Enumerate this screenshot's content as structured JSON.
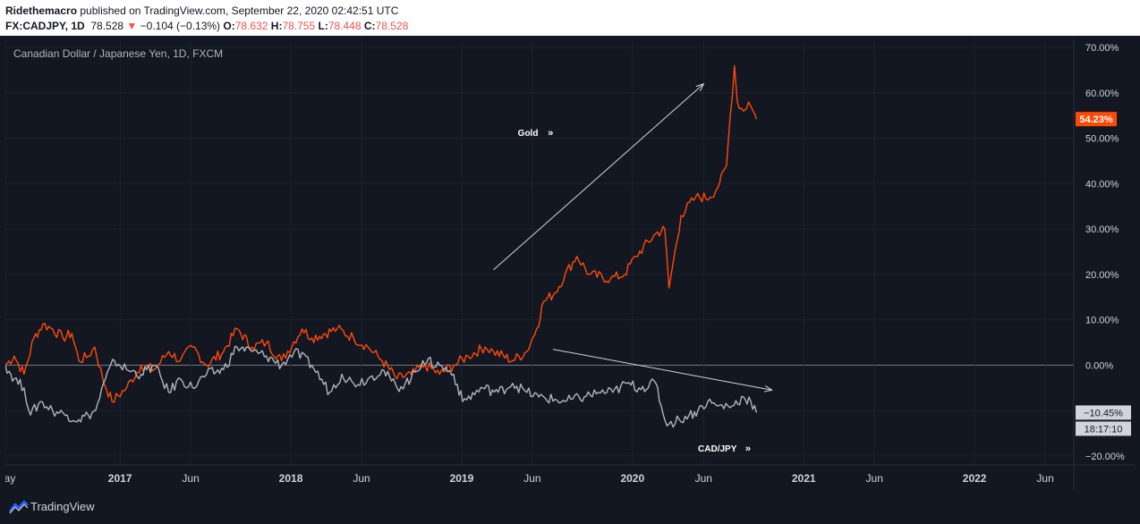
{
  "header": {
    "author": "Ridethemacro",
    "published_text": "published on TradingView.com, September 22, 2020 02:42:51 UTC",
    "symbol": "FX:CADJPY, 1D",
    "price": "78.528",
    "change": "−0.104 (−0.13%)",
    "o_label": "O:",
    "o_value": "78.632",
    "h_label": "H:",
    "h_value": "78.755",
    "l_label": "L:",
    "l_value": "78.448",
    "c_label": "C:",
    "c_value": "78.528",
    "down_arrow": "▼"
  },
  "footer": {
    "brand": "TradingView"
  },
  "colors": {
    "gold": "#ff4a07",
    "cadjpy": "#b2b5be",
    "background": "#131722",
    "grid": "#1e222d",
    "zero_line": "#787b86"
  },
  "chart_data": {
    "type": "line",
    "title": "Canadian Dollar / Japanese Yen, 1D, FXCM",
    "y_unit": "%",
    "ylim": [
      -22,
      72
    ],
    "xlim": [
      "2016-05-01",
      "2022-08-01"
    ],
    "y_ticks": [
      "70.00%",
      "60.00%",
      "50.00%",
      "40.00%",
      "30.00%",
      "20.00%",
      "10.00%",
      "0.00%",
      "−20.00%"
    ],
    "y_tick_values": [
      70,
      60,
      50,
      40,
      30,
      20,
      10,
      0,
      -20
    ],
    "x_ticks": [
      {
        "date": "2016-05-01",
        "label": "May",
        "bold": false
      },
      {
        "date": "2017-01-01",
        "label": "2017",
        "bold": true
      },
      {
        "date": "2017-06-01",
        "label": "Jun",
        "bold": false
      },
      {
        "date": "2018-01-01",
        "label": "2018",
        "bold": true
      },
      {
        "date": "2018-06-01",
        "label": "Jun",
        "bold": false
      },
      {
        "date": "2019-01-01",
        "label": "2019",
        "bold": true
      },
      {
        "date": "2019-06-01",
        "label": "Jun",
        "bold": false
      },
      {
        "date": "2020-01-01",
        "label": "2020",
        "bold": true
      },
      {
        "date": "2020-06-01",
        "label": "Jun",
        "bold": false
      },
      {
        "date": "2021-01-01",
        "label": "2021",
        "bold": true
      },
      {
        "date": "2021-06-01",
        "label": "Jun",
        "bold": false
      },
      {
        "date": "2022-01-01",
        "label": "2022",
        "bold": true
      },
      {
        "date": "2022-06-01",
        "label": "Jun",
        "bold": false
      }
    ],
    "grid": true,
    "series": [
      {
        "name": "Gold",
        "color": "#ff4a07",
        "last_value_label": "54.23%",
        "points": [
          [
            "2016-05-01",
            0
          ],
          [
            "2016-05-20",
            2
          ],
          [
            "2016-06-10",
            -2
          ],
          [
            "2016-07-01",
            6
          ],
          [
            "2016-07-20",
            9
          ],
          [
            "2016-08-10",
            8
          ],
          [
            "2016-09-01",
            6
          ],
          [
            "2016-09-20",
            7
          ],
          [
            "2016-10-05",
            1
          ],
          [
            "2016-10-25",
            2
          ],
          [
            "2016-11-08",
            4
          ],
          [
            "2016-11-25",
            -3
          ],
          [
            "2016-12-15",
            -8
          ],
          [
            "2017-01-15",
            -5
          ],
          [
            "2017-02-15",
            0
          ],
          [
            "2017-03-15",
            -1
          ],
          [
            "2017-04-15",
            3
          ],
          [
            "2017-05-10",
            1
          ],
          [
            "2017-06-05",
            4
          ],
          [
            "2017-07-05",
            0
          ],
          [
            "2017-08-10",
            3
          ],
          [
            "2017-09-08",
            8
          ],
          [
            "2017-10-10",
            4
          ],
          [
            "2017-11-10",
            5
          ],
          [
            "2017-12-12",
            1
          ],
          [
            "2018-01-25",
            8
          ],
          [
            "2018-02-15",
            6
          ],
          [
            "2018-04-10",
            8
          ],
          [
            "2018-05-15",
            6
          ],
          [
            "2018-06-15",
            4
          ],
          [
            "2018-07-15",
            1
          ],
          [
            "2018-08-16",
            -3
          ],
          [
            "2018-09-15",
            -2
          ],
          [
            "2018-10-15",
            0
          ],
          [
            "2018-11-15",
            -2
          ],
          [
            "2018-12-15",
            0
          ],
          [
            "2019-01-15",
            2
          ],
          [
            "2019-02-20",
            4
          ],
          [
            "2019-03-10",
            3
          ],
          [
            "2019-04-20",
            1
          ],
          [
            "2019-05-20",
            3
          ],
          [
            "2019-06-10",
            8
          ],
          [
            "2019-06-25",
            14
          ],
          [
            "2019-07-20",
            16
          ],
          [
            "2019-08-10",
            20
          ],
          [
            "2019-09-04",
            24
          ],
          [
            "2019-10-01",
            20
          ],
          [
            "2019-11-15",
            19
          ],
          [
            "2019-12-15",
            20
          ],
          [
            "2020-01-08",
            24
          ],
          [
            "2020-02-20",
            29
          ],
          [
            "2020-03-10",
            30
          ],
          [
            "2020-03-19",
            17
          ],
          [
            "2020-04-14",
            33
          ],
          [
            "2020-05-15",
            37
          ],
          [
            "2020-06-15",
            37
          ],
          [
            "2020-07-05",
            40
          ],
          [
            "2020-07-20",
            44
          ],
          [
            "2020-07-28",
            55
          ],
          [
            "2020-08-06",
            66
          ],
          [
            "2020-08-12",
            58
          ],
          [
            "2020-08-25",
            56
          ],
          [
            "2020-09-05",
            58
          ],
          [
            "2020-09-15",
            56
          ],
          [
            "2020-09-22",
            54.23
          ]
        ]
      },
      {
        "name": "CAD/JPY",
        "color": "#b2b5be",
        "last_value_label": "−10.45%",
        "countdown_label": "18:17:10",
        "points": [
          [
            "2016-05-01",
            0
          ],
          [
            "2016-05-20",
            -3
          ],
          [
            "2016-06-10",
            -5
          ],
          [
            "2016-06-24",
            -11
          ],
          [
            "2016-07-15",
            -8
          ],
          [
            "2016-08-10",
            -10
          ],
          [
            "2016-09-10",
            -11
          ],
          [
            "2016-10-05",
            -12
          ],
          [
            "2016-10-25",
            -11
          ],
          [
            "2016-11-10",
            -10
          ],
          [
            "2016-12-01",
            -3
          ],
          [
            "2016-12-20",
            1
          ],
          [
            "2017-01-15",
            -1
          ],
          [
            "2017-02-15",
            -2
          ],
          [
            "2017-03-15",
            0
          ],
          [
            "2017-04-15",
            -6
          ],
          [
            "2017-05-10",
            -3
          ],
          [
            "2017-06-05",
            -5
          ],
          [
            "2017-07-05",
            -2
          ],
          [
            "2017-08-10",
            -1
          ],
          [
            "2017-09-08",
            4
          ],
          [
            "2017-10-10",
            3
          ],
          [
            "2017-11-10",
            2
          ],
          [
            "2017-12-12",
            0
          ],
          [
            "2018-01-08",
            3
          ],
          [
            "2018-02-15",
            0
          ],
          [
            "2018-03-25",
            -6
          ],
          [
            "2018-04-20",
            -2
          ],
          [
            "2018-05-15",
            -4
          ],
          [
            "2018-06-15",
            -3
          ],
          [
            "2018-07-15",
            -1
          ],
          [
            "2018-08-16",
            -5
          ],
          [
            "2018-09-15",
            -3
          ],
          [
            "2018-10-10",
            1
          ],
          [
            "2018-11-15",
            0
          ],
          [
            "2018-12-15",
            -2
          ],
          [
            "2019-01-03",
            -8
          ],
          [
            "2019-02-15",
            -5
          ],
          [
            "2019-03-20",
            -6
          ],
          [
            "2019-04-20",
            -4
          ],
          [
            "2019-05-20",
            -6
          ],
          [
            "2019-06-15",
            -7
          ],
          [
            "2019-08-10",
            -8
          ],
          [
            "2019-09-20",
            -7
          ],
          [
            "2019-10-20",
            -6
          ],
          [
            "2019-11-20",
            -6
          ],
          [
            "2019-12-20",
            -4
          ],
          [
            "2020-01-15",
            -5
          ],
          [
            "2020-02-20",
            -4
          ],
          [
            "2020-03-10",
            -12
          ],
          [
            "2020-03-19",
            -13
          ],
          [
            "2020-04-10",
            -12
          ],
          [
            "2020-05-01",
            -11
          ],
          [
            "2020-05-20",
            -10
          ],
          [
            "2020-06-10",
            -8
          ],
          [
            "2020-07-01",
            -9
          ],
          [
            "2020-08-01",
            -9
          ],
          [
            "2020-08-25",
            -7
          ],
          [
            "2020-09-10",
            -8
          ],
          [
            "2020-09-22",
            -10.45
          ]
        ]
      }
    ],
    "annotations": [
      {
        "text": "Gold",
        "date": "2019-05-01",
        "value": 50.5
      },
      {
        "text": "CAD/JPY",
        "date": "2020-05-20",
        "value": -19
      }
    ],
    "arrows": [
      {
        "from": [
          "2019-03-10",
          21
        ],
        "to": [
          "2020-06-01",
          62
        ]
      },
      {
        "from": [
          "2019-07-15",
          3.5
        ],
        "to": [
          "2020-10-25",
          -5.5
        ]
      }
    ]
  }
}
